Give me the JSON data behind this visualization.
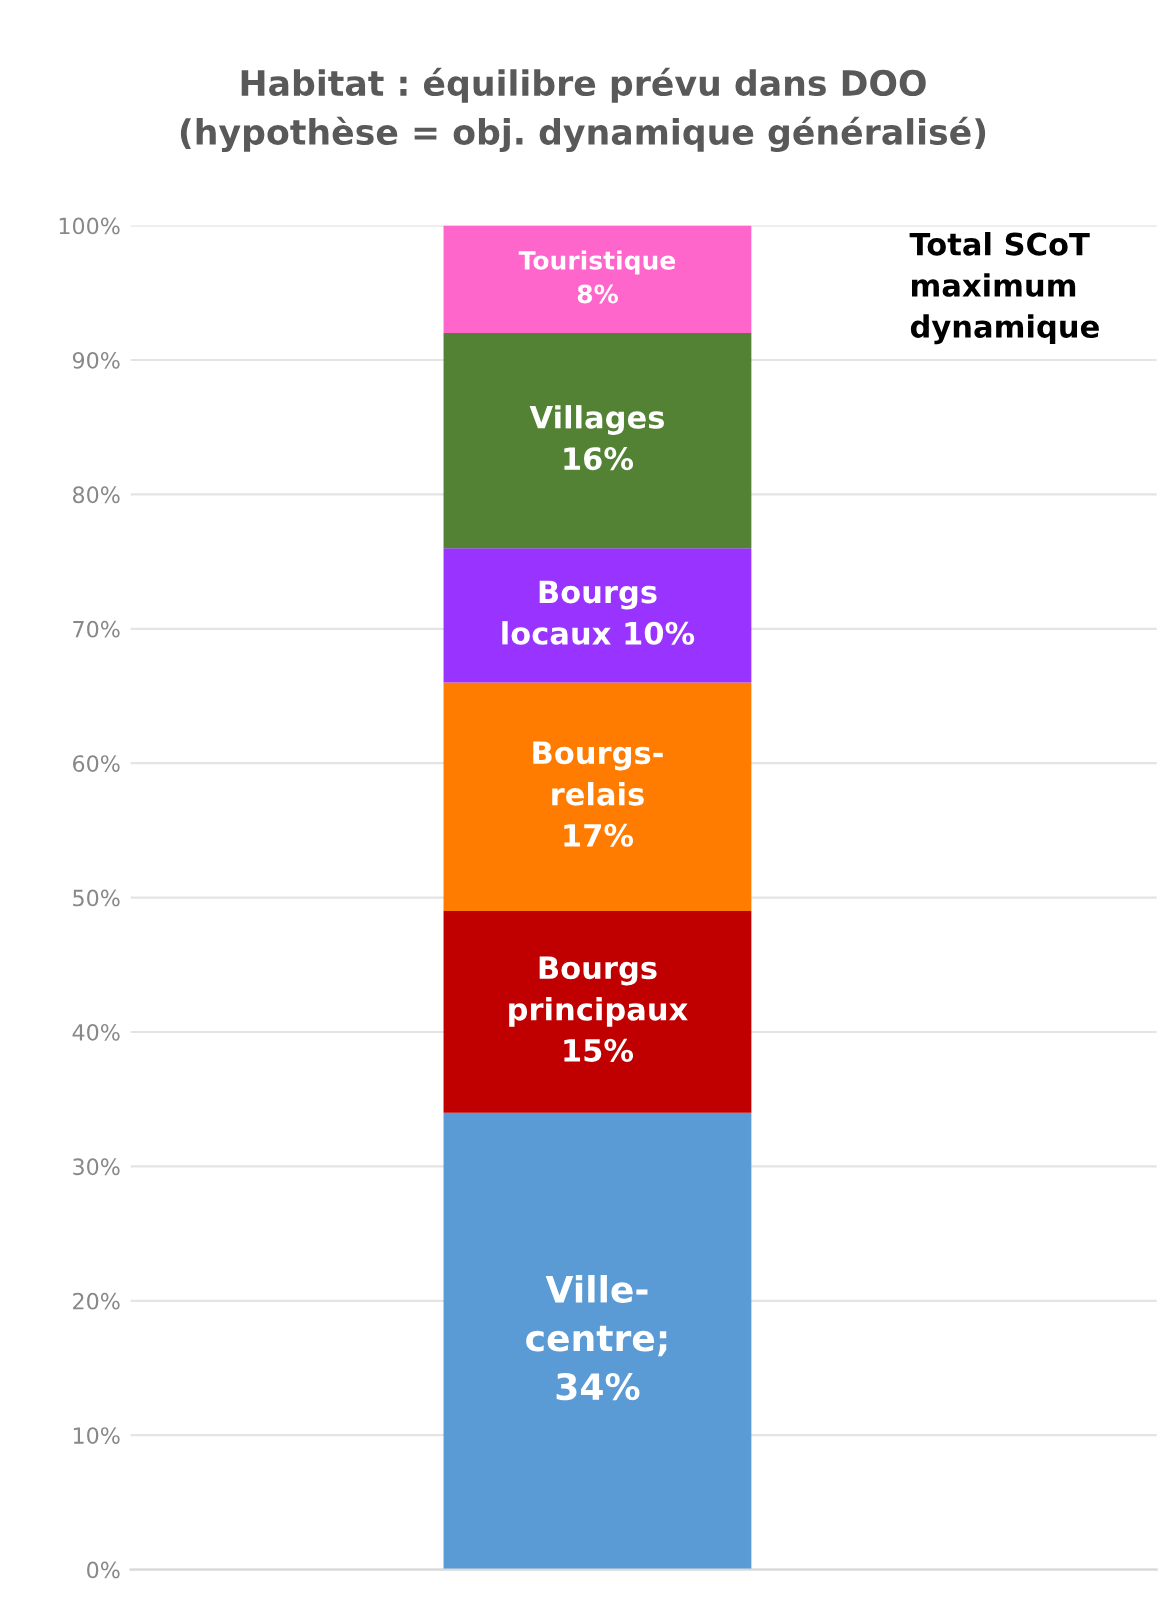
{
  "chart_data": {
    "type": "bar",
    "stacked": true,
    "title": "Habitat : équilibre prévu dans DOO\n(hypothèse = obj. dynamique généralisé)",
    "categories": [
      null
    ],
    "series": [
      {
        "color": "#5b9bd5",
        "values": [
          34
        ],
        "value_labels": [
          "Ville-\ncentre;\n34%"
        ]
      },
      {
        "color": "#c00000",
        "values": [
          15
        ],
        "value_labels": [
          "Bourgs\nprincipaux\n15%"
        ]
      },
      {
        "color": "#ff7c00",
        "values": [
          17
        ],
        "value_labels": [
          "Bourgs-\nrelais\n17%"
        ]
      },
      {
        "color": "#9933ff",
        "values": [
          10
        ],
        "value_labels": [
          "Bourgs\nlocaux 10%"
        ]
      },
      {
        "color": "#548235",
        "values": [
          16
        ],
        "value_labels": [
          "Villages\n16%"
        ]
      },
      {
        "color": "#ff66cc",
        "values": [
          8
        ],
        "value_labels": [
          "Touristique\n8%"
        ]
      }
    ],
    "ylim": [
      0,
      100
    ],
    "yticks": [
      {
        "value": 0,
        "label": "0%"
      },
      {
        "value": 10,
        "label": "10%"
      },
      {
        "value": 20,
        "label": "20%"
      },
      {
        "value": 30,
        "label": "30%"
      },
      {
        "value": 40,
        "label": "40%"
      },
      {
        "value": 50,
        "label": "50%"
      },
      {
        "value": 60,
        "label": "60%"
      },
      {
        "value": 70,
        "label": "70%"
      },
      {
        "value": 80,
        "label": "80%"
      },
      {
        "value": 90,
        "label": "90%"
      },
      {
        "value": 100,
        "label": "100%"
      }
    ],
    "grid": "y",
    "annotations": [
      "Total SCoT\nmaximum\ndynamique"
    ]
  }
}
